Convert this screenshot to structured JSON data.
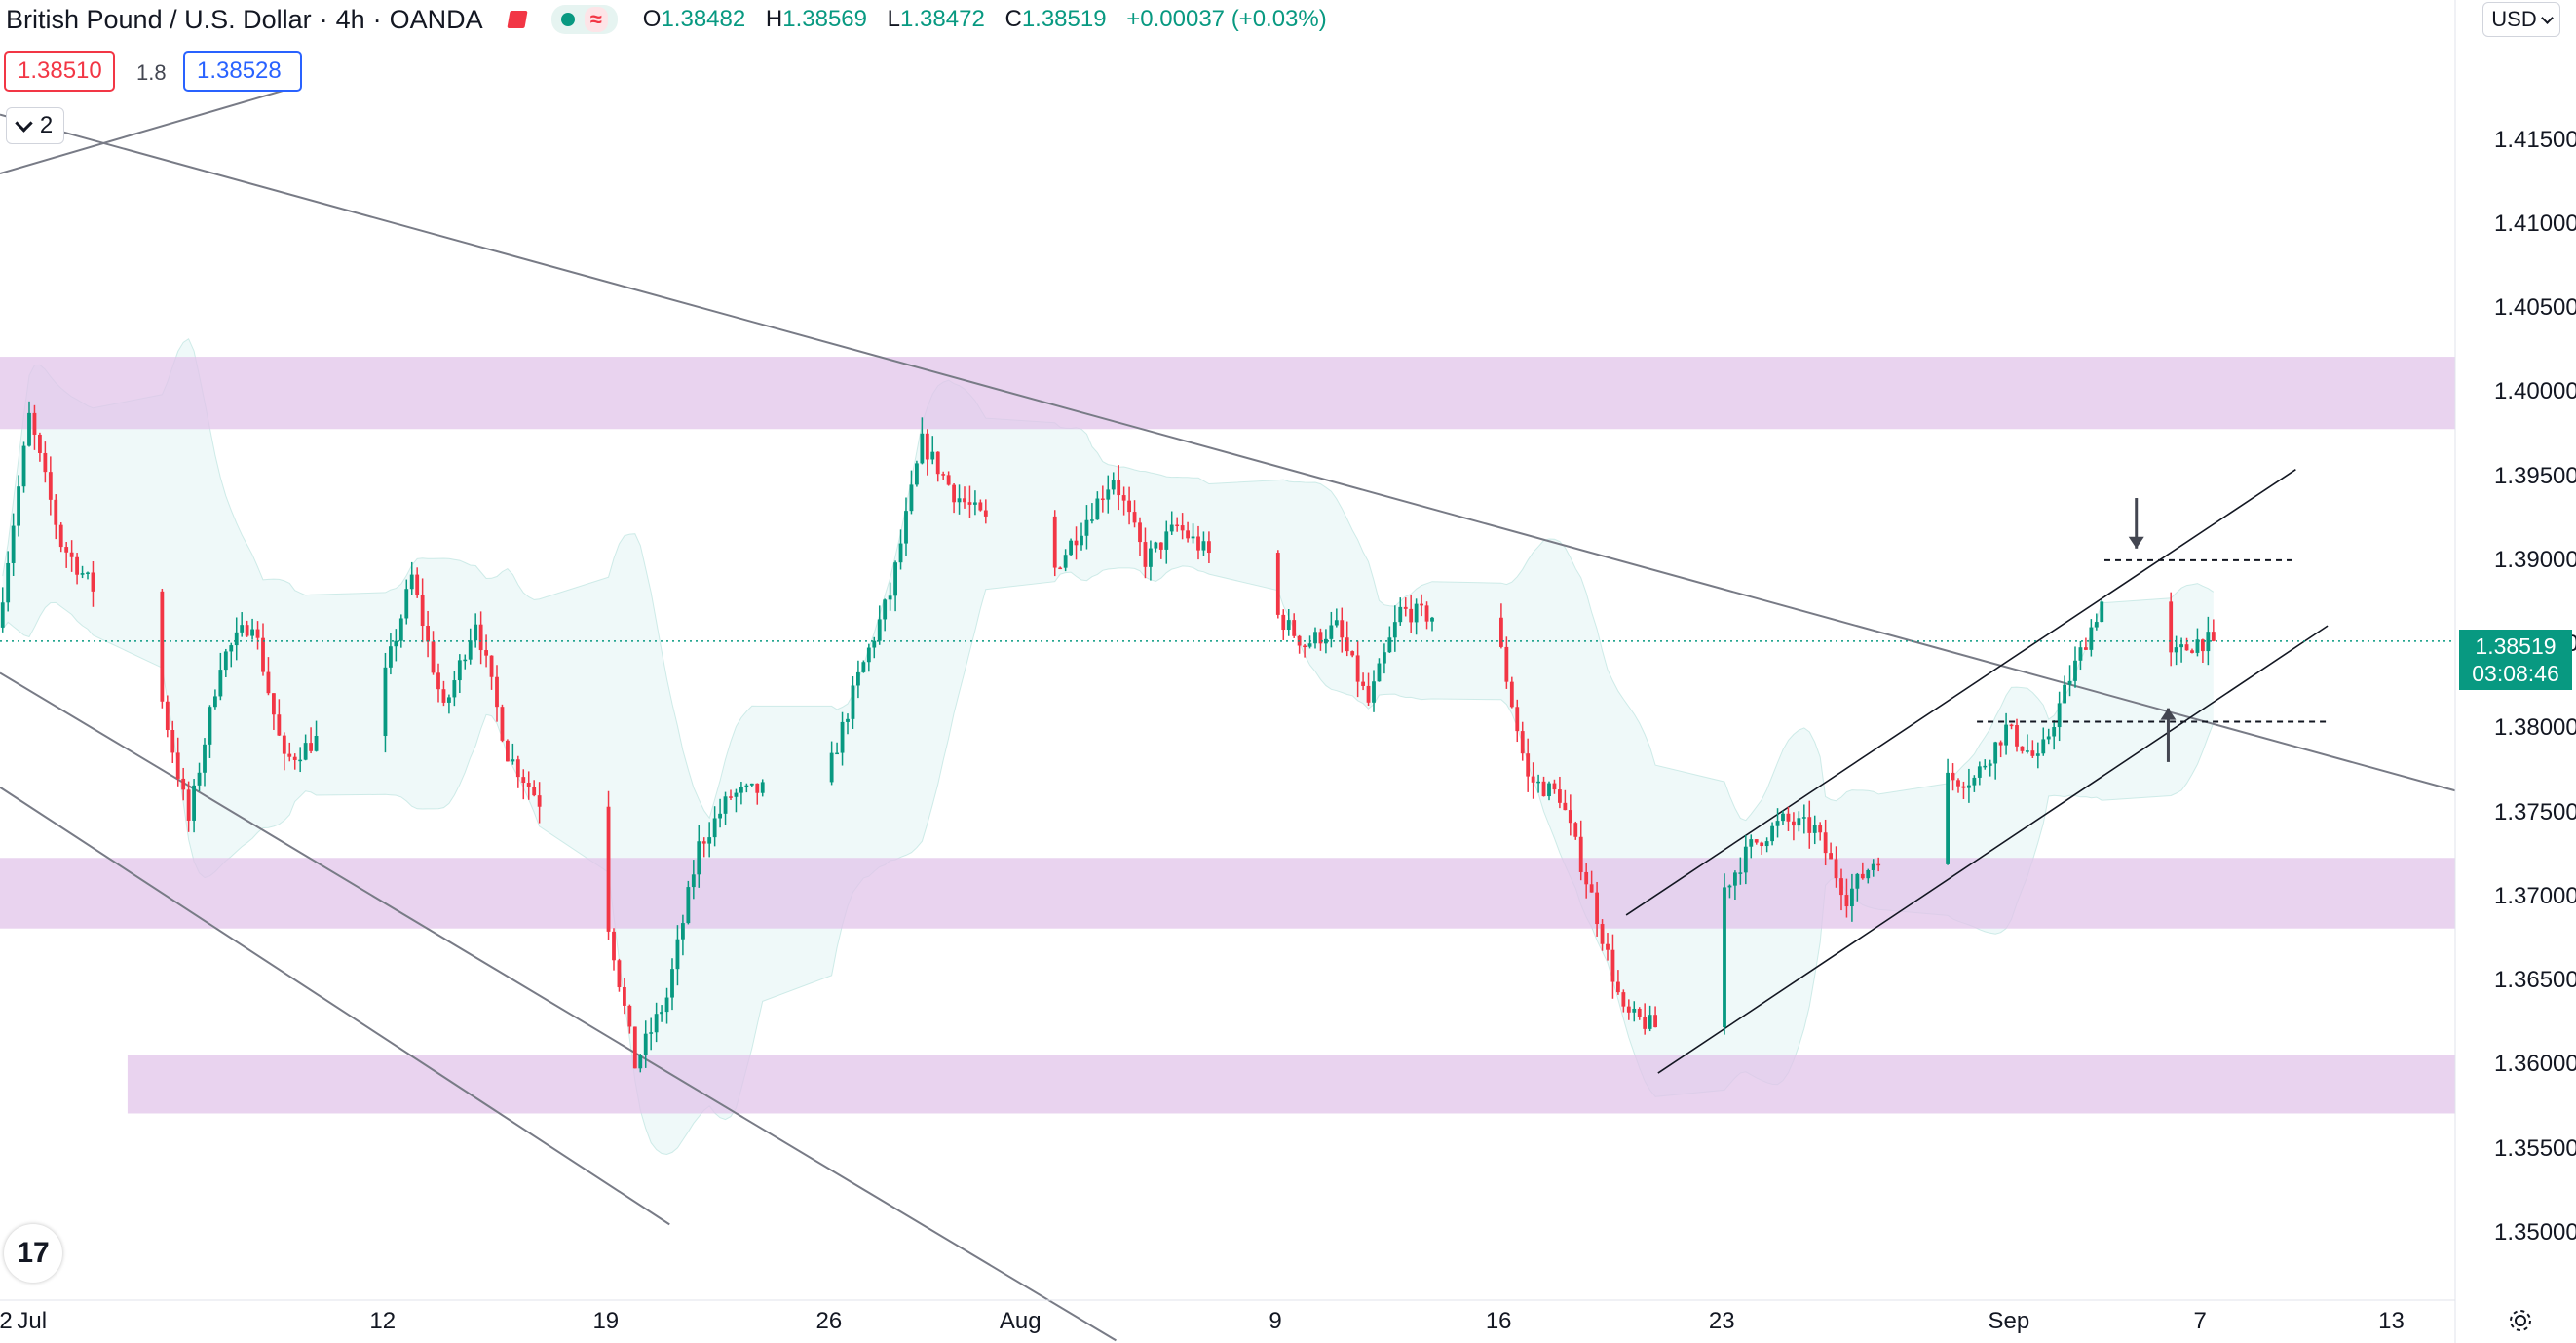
{
  "header": {
    "symbol": "British Pound / U.S. Dollar",
    "interval": "4h",
    "exchange": "OANDA",
    "ohlc": {
      "o_label": "O",
      "o": "1.38482",
      "h_label": "H",
      "h": "1.38569",
      "l_label": "L",
      "l": "1.38472",
      "c_label": "C",
      "c": "1.38519",
      "change": "+0.00037 (+0.03%)"
    }
  },
  "quotes": {
    "bid": "1.38510",
    "spread": "1.8",
    "ask": "1.38528"
  },
  "indicators_count": "2",
  "currency_selector": "USD",
  "price_label": {
    "price": "1.38519",
    "countdown": "03:08:46"
  },
  "logo_text": "17",
  "colors": {
    "up": "#089981",
    "down": "#f23645",
    "zone": "#e1c4e9",
    "band": "#e6f6f6",
    "line": "#787b86"
  },
  "chart_data": {
    "type": "candlestick",
    "title": "",
    "xlabel": "",
    "ylabel": "",
    "y_axis": {
      "ticks": [
        "1.41500",
        "1.41000",
        "1.40500",
        "1.40000",
        "1.39500",
        "1.39000",
        "1.38500",
        "1.38000",
        "1.37500",
        "1.37000",
        "1.36500",
        "1.36000",
        "1.35500",
        "1.35000"
      ],
      "range": [
        1.346,
        1.421
      ]
    },
    "x_axis": {
      "ticks": [
        "2",
        "Jul",
        "12",
        "19",
        "26",
        "Aug",
        "9",
        "16",
        "23",
        "Sep",
        "7",
        "13"
      ],
      "range": [
        "2021-06-30",
        "2021-09-15"
      ]
    },
    "last_price": 1.38519,
    "zones": [
      {
        "from": 1.3978,
        "to": 1.4021,
        "start": "2021-06-30",
        "end": "2021-09-15"
      },
      {
        "from": 1.3681,
        "to": 1.3723,
        "start": "2021-06-30",
        "end": "2021-09-15"
      },
      {
        "from": 1.3571,
        "to": 1.3606,
        "start": "2021-07-04",
        "end": "2021-09-15"
      }
    ],
    "trendlines": [
      {
        "p1": [
          "2021-06-30",
          1.4165
        ],
        "p2": [
          "2021-09-15",
          1.3763
        ]
      },
      {
        "p1": [
          "2021-06-30",
          1.3765
        ],
        "p2": [
          "2021-07-21",
          1.3505
        ]
      },
      {
        "p1": [
          "2021-06-30",
          1.3833
        ],
        "p2": [
          "2021-08-04",
          1.3436
        ]
      },
      {
        "p1": [
          "2021-06-30",
          1.413
        ],
        "p2": [
          "2021-07-09",
          1.418
        ]
      },
      {
        "p1": [
          "2021-08-20",
          1.3689
        ],
        "p2": [
          "2021-09-10",
          1.3954
        ]
      },
      {
        "p1": [
          "2021-08-21",
          1.3595
        ],
        "p2": [
          "2021-09-11",
          1.3861
        ]
      }
    ],
    "levels": [
      {
        "price": 1.39,
        "start": "2021-09-04",
        "end": "2021-09-10"
      },
      {
        "price": 1.3804,
        "start": "2021-08-31",
        "end": "2021-09-11"
      }
    ],
    "arrows": [
      {
        "date": "2021-09-05",
        "from": 1.3937,
        "to": 1.3907,
        "direction": "down"
      },
      {
        "date": "2021-09-06",
        "from": 1.378,
        "to": 1.3812,
        "direction": "up"
      }
    ],
    "anchors": [
      [
        "2021-06-30",
        1.386
      ],
      [
        "2021-07-01",
        1.3985
      ],
      [
        "2021-07-02",
        1.391
      ],
      [
        "2021-07-05",
        1.383
      ],
      [
        "2021-07-06",
        1.3745
      ],
      [
        "2021-07-07",
        1.384
      ],
      [
        "2021-07-08",
        1.3865
      ],
      [
        "2021-07-09",
        1.378
      ],
      [
        "2021-07-12",
        1.382
      ],
      [
        "2021-07-13",
        1.389
      ],
      [
        "2021-07-14",
        1.381
      ],
      [
        "2021-07-15",
        1.3865
      ],
      [
        "2021-07-16",
        1.3785
      ],
      [
        "2021-07-19",
        1.37
      ],
      [
        "2021-07-20",
        1.36
      ],
      [
        "2021-07-21",
        1.364
      ],
      [
        "2021-07-22",
        1.373
      ],
      [
        "2021-07-23",
        1.376
      ],
      [
        "2021-07-26",
        1.377
      ],
      [
        "2021-07-27",
        1.383
      ],
      [
        "2021-07-28",
        1.388
      ],
      [
        "2021-07-29",
        1.397
      ],
      [
        "2021-07-30",
        1.394
      ],
      [
        "2021-08-02",
        1.389
      ],
      [
        "2021-08-03",
        1.392
      ],
      [
        "2021-08-04",
        1.395
      ],
      [
        "2021-08-05",
        1.39
      ],
      [
        "2021-08-06",
        1.392
      ],
      [
        "2021-08-09",
        1.387
      ],
      [
        "2021-08-10",
        1.385
      ],
      [
        "2021-08-11",
        1.386
      ],
      [
        "2021-08-12",
        1.3815
      ],
      [
        "2021-08-13",
        1.387
      ],
      [
        "2021-08-16",
        1.386
      ],
      [
        "2021-08-17",
        1.377
      ],
      [
        "2021-08-18",
        1.376
      ],
      [
        "2021-08-19",
        1.37
      ],
      [
        "2021-08-20",
        1.363
      ],
      [
        "2021-08-22",
        1.3615
      ],
      [
        "2021-08-23",
        1.37
      ],
      [
        "2021-08-24",
        1.373
      ],
      [
        "2021-08-25",
        1.3745
      ],
      [
        "2021-08-26",
        1.374
      ],
      [
        "2021-08-27",
        1.37
      ],
      [
        "2021-08-29",
        1.375
      ],
      [
        "2021-08-30",
        1.377
      ],
      [
        "2021-08-31",
        1.377
      ],
      [
        "2021-09-01",
        1.38
      ],
      [
        "2021-09-02",
        1.378
      ],
      [
        "2021-09-03",
        1.383
      ],
      [
        "2021-09-04",
        1.3875
      ],
      [
        "2021-09-05",
        1.386
      ],
      [
        "2021-09-06",
        1.384
      ],
      [
        "2021-09-07",
        1.38519
      ]
    ],
    "band_width": 0.0045
  }
}
